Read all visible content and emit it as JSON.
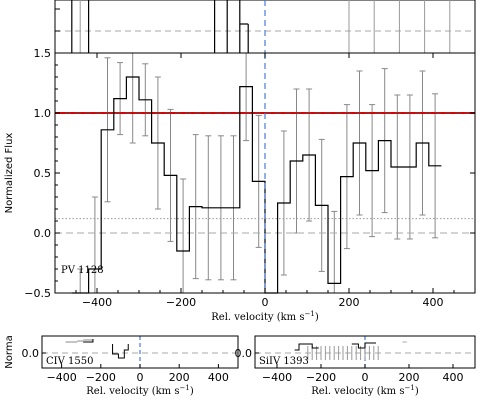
{
  "chart_data": [
    {
      "id": "pv1128",
      "type": "line",
      "ion_label": "PV 1128",
      "xlabel": "Rel. velocity  (km s",
      "xlabel_sup": "−1",
      "xlabel_end": ")",
      "ylabel": "Normalized Flux",
      "xlim": [
        -500,
        500
      ],
      "ylim": [
        -0.5,
        1.5
      ],
      "xticks": [
        -400,
        -200,
        0,
        200,
        400
      ],
      "yticks": [
        -0.5,
        0.0,
        0.5,
        1.0,
        1.5
      ],
      "ytick_labels": [
        "−0.5",
        "0.0",
        "0.5",
        "1.0",
        "1.5"
      ],
      "xtick_labels": [
        "−400",
        "−200",
        "0",
        "200",
        "400"
      ],
      "continuum": 1.0,
      "zero_level": 0.0,
      "noise_level": 0.12,
      "system_velocity": 0,
      "colors": {
        "continuum": "#dd0000",
        "spectrum": "#000000",
        "errors": "#888888",
        "system": "#4a7bd8"
      },
      "spectrum": {
        "edges": [
          -460,
          -420,
          -390,
          -360,
          -330,
          -300,
          -270,
          -240,
          -210,
          -180,
          -150,
          -120,
          -90,
          -60,
          -30,
          0,
          30,
          60,
          90,
          120,
          150,
          180,
          210,
          240,
          270,
          300,
          330,
          360,
          390,
          420
        ],
        "flux": [
          -0.9,
          -0.3,
          0.86,
          1.12,
          1.3,
          1.11,
          0.75,
          0.48,
          -0.15,
          0.22,
          0.21,
          0.21,
          0.21,
          1.22,
          0.43,
          -1.0,
          0.25,
          0.6,
          0.65,
          0.23,
          -0.42,
          0.47,
          0.75,
          0.52,
          0.77,
          0.55,
          0.55,
          0.75,
          0.56
        ],
        "errors": [
          0.6,
          0.6,
          0.6,
          0.3,
          0.55,
          0.3,
          0.55,
          0.55,
          0.6,
          0.6,
          0.6,
          0.6,
          0.6,
          0.45,
          0.55,
          0.1,
          0.6,
          0.6,
          0.55,
          0.55,
          0.6,
          0.6,
          0.6,
          0.55,
          0.6,
          0.6,
          0.6,
          0.6,
          0.6
        ]
      }
    },
    {
      "id": "civ1550",
      "type": "line",
      "ion_label": "CIV 1550",
      "xlabel": "Rel. velocity  (km s",
      "xlabel_sup": "−1",
      "xlabel_end": ")",
      "ylabel": "Norma",
      "xlim": [
        -500,
        500
      ],
      "ylim": [
        -0.1,
        0.3
      ],
      "xticks": [
        -400,
        -200,
        0,
        200,
        400
      ],
      "xtick_labels": [
        "−400",
        "−200",
        "0",
        "200",
        "400"
      ],
      "ytick_labels": [
        "0.0"
      ],
      "system_velocity": 0
    },
    {
      "id": "siiv1393",
      "type": "line",
      "ion_label": "SiIV 1393",
      "xlabel": "Rel. velocity  (km s",
      "xlabel_sup": "−1",
      "xlabel_end": ")",
      "xlim": [
        -500,
        500
      ],
      "ylim": [
        -0.1,
        0.3
      ],
      "xticks": [
        -400,
        -200,
        0,
        200,
        400
      ],
      "xtick_labels": [
        "−400",
        "−200",
        "0",
        "200",
        "400"
      ],
      "ytick_labels": [
        "0.0"
      ],
      "system_velocity": 0
    }
  ]
}
